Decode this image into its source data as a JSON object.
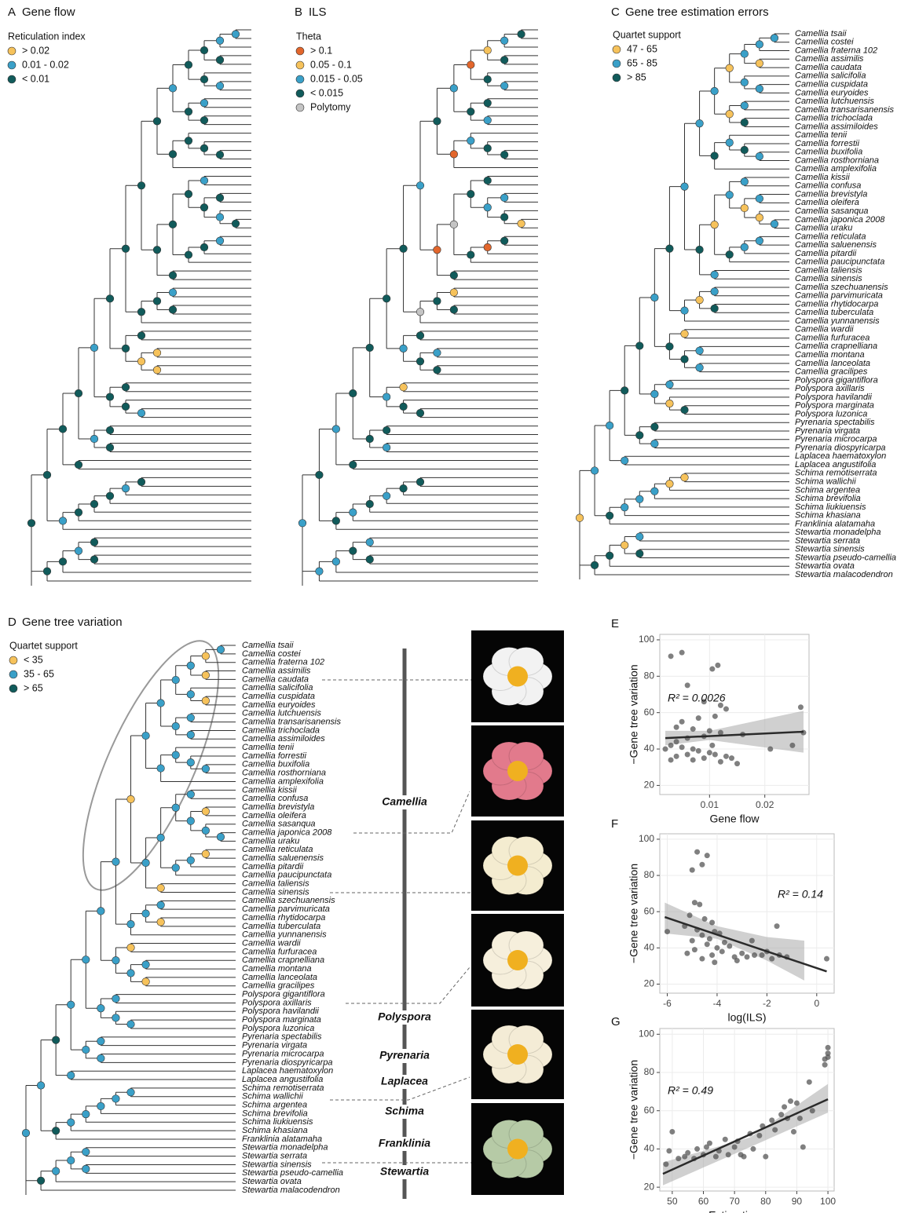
{
  "taxa": [
    "Camellia tsaii",
    "Camellia costei",
    "Camellia fraterna 102",
    "Camellia assimilis",
    "Camellia caudata",
    "Camellia salicifolia",
    "Camellia cuspidata",
    "Camellia euryoides",
    "Camellia lutchuensis",
    "Camellia transarisanensis",
    "Camellia trichoclada",
    "Camellia assimiloides",
    "Camellia tenii",
    "Camellia forrestii",
    "Camellia buxifolia",
    "Camellia rosthorniana",
    "Camellia amplexifolia",
    "Camellia kissii",
    "Camellia confusa",
    "Camellia brevistyla",
    "Camellia oleifera",
    "Camellia sasanqua",
    "Camellia japonica 2008",
    "Camellia uraku",
    "Camellia reticulata",
    "Camellia saluenensis",
    "Camellia pitardii",
    "Camellia paucipunctata",
    "Camellia taliensis",
    "Camellia sinensis",
    "Camellia szechuanensis",
    "Camellia parvimuricata",
    "Camellia rhytidocarpa",
    "Camellia tuberculata",
    "Camellia yunnanensis",
    "Camellia wardii",
    "Camellia furfuracea",
    "Camellia crapnelliana",
    "Camellia montana",
    "Camellia lanceolata",
    "Camellia gracilipes",
    "Polyspora gigantiflora",
    "Polyspora axillaris",
    "Polyspora havilandii",
    "Polyspora marginata",
    "Polyspora luzonica",
    "Pyrenaria spectabilis",
    "Pyrenaria virgata",
    "Pyrenaria microcarpa",
    "Pyrenaria diospyricarpa",
    "Laplacea haematoxylon",
    "Laplacea angustifolia",
    "Schima remotiserrata",
    "Schima wallichii",
    "Schima argentea",
    "Schima brevifolia",
    "Schima liukiuensis",
    "Schima khasiana",
    "Franklinia alatamaha",
    "Stewartia monadelpha",
    "Stewartia serrata",
    "Stewartia sinensis",
    "Stewartia pseudo-camellia",
    "Stewartia ovata",
    "Stewartia malacodendron"
  ],
  "tree": [
    [
      [
        [
          [
            [
              [
                [
                  [
                    [
                      [
                        [
                          [
                            [
                              0,
                              1
                            ],
                            2
                          ],
                          [
                            3,
                            4
                          ]
                        ],
                        [
                          5,
                          [
                            6,
                            7
                          ]
                        ]
                      ],
                      [
                        [
                          8,
                          9
                        ],
                        [
                          10,
                          11
                        ]
                      ]
                    ],
                    [
                      [
                        12,
                        [
                          13,
                          [
                            14,
                            15
                          ]
                        ]
                      ],
                      16
                    ]
                  ],
                  [
                    [
                      [
                        [
                          17,
                          18
                        ],
                        [
                          [
                            19,
                            20
                          ],
                          [
                            21,
                            [
                              22,
                              23
                            ]
                          ]
                        ]
                      ],
                      [
                        [
                          [
                            24,
                            25
                          ],
                          26
                        ],
                        27
                      ]
                    ],
                    [
                      28,
                      29
                    ]
                  ]
                ],
                [
                  [
                    [
                      30,
                      31
                    ],
                    [
                      32,
                      33
                    ]
                  ],
                  34
                ]
              ],
              [
                [
                  35,
                  36
                ],
                [
                  [
                    37,
                    38
                  ],
                  [
                    39,
                    40
                  ]
                ]
              ]
            ],
            [
              [
                41,
                42
              ],
              [
                43,
                [
                  44,
                  45
                ]
              ]
            ]
          ],
          [
            [
              46,
              47
            ],
            [
              48,
              49
            ]
          ]
        ],
        [
          50,
          51
        ]
      ],
      [
        [
          [
            [
              [
                [
                  52,
                  53
                ],
                54
              ],
              55
            ],
            56
          ],
          57
        ],
        58
      ]
    ],
    [
      [
        [
          [
            59,
            60
          ],
          [
            61,
            62
          ]
        ],
        63
      ],
      64
    ]
  ],
  "clades": [
    "Camellia",
    "Polyspora",
    "Pyrenaria",
    "Laplacea",
    "Schima",
    "Franklinia",
    "Stewartia"
  ],
  "chart_data": [
    {
      "type": "tree",
      "label": "A",
      "title": "Gene flow",
      "legend_title": "Reticulation index",
      "show_taxa": false,
      "legend": [
        {
          "label": "> 0.02",
          "color": "#f6c25b"
        },
        {
          "label": "0.01 - 0.02",
          "color": "#3aa0c8"
        },
        {
          "label": "< 0.01",
          "color": "#115b5b"
        }
      ],
      "node_classes": [
        1,
        1,
        2,
        2,
        1,
        2,
        2,
        1,
        2,
        2,
        1,
        2,
        2,
        2,
        2,
        2,
        1,
        2,
        2,
        1,
        2,
        2,
        1,
        2,
        2,
        2,
        2,
        2,
        2,
        1,
        2,
        2,
        2,
        2,
        2,
        0,
        0,
        0,
        2,
        2,
        2,
        1,
        2,
        2,
        1,
        2,
        2,
        1,
        2,
        2,
        2,
        2,
        1,
        2,
        2,
        2,
        1,
        2,
        2,
        2,
        1,
        2,
        2,
        2
      ]
    },
    {
      "type": "tree",
      "label": "B",
      "title": "ILS",
      "legend_title": "Theta",
      "show_taxa": false,
      "legend": [
        {
          "label": "> 0.1",
          "color": "#e2662c"
        },
        {
          "label": "0.05 - 0.1",
          "color": "#f6c25b"
        },
        {
          "label": "0.015 - 0.05",
          "color": "#3aa0c8"
        },
        {
          "label": "< 0.015",
          "color": "#115b5b"
        },
        {
          "label": "Polytomy",
          "color": "#c4c4c4"
        }
      ],
      "node_classes": [
        3,
        2,
        3,
        1,
        2,
        3,
        0,
        3,
        2,
        3,
        2,
        3,
        3,
        2,
        0,
        3,
        3,
        2,
        1,
        3,
        2,
        3,
        3,
        0,
        3,
        4,
        3,
        0,
        2,
        1,
        3,
        3,
        4,
        3,
        3,
        2,
        3,
        3,
        2,
        3,
        1,
        3,
        3,
        2,
        3,
        3,
        2,
        3,
        3,
        3,
        2,
        3,
        3,
        2,
        3,
        2,
        3,
        3,
        2,
        3,
        3,
        2,
        2,
        2
      ]
    },
    {
      "type": "tree",
      "label": "C",
      "title": "Gene tree estimation errors",
      "legend_title": "Quartet support",
      "show_taxa": true,
      "legend": [
        {
          "label": "47 - 65",
          "color": "#f6c25b"
        },
        {
          "label": "65 - 85",
          "color": "#3aa0c8"
        },
        {
          "label": "> 85",
          "color": "#115b5b"
        }
      ],
      "node_classes": [
        1,
        1,
        0,
        1,
        1,
        1,
        0,
        1,
        2,
        0,
        1,
        1,
        2,
        1,
        2,
        1,
        1,
        1,
        1,
        0,
        0,
        1,
        1,
        1,
        2,
        0,
        1,
        2,
        1,
        1,
        2,
        0,
        1,
        2,
        0,
        1,
        1,
        2,
        2,
        1,
        1,
        2,
        0,
        1,
        2,
        2,
        1,
        2,
        2,
        1,
        1,
        0,
        0,
        1,
        1,
        1,
        2,
        1,
        1,
        2,
        0,
        2,
        2,
        0
      ]
    },
    {
      "type": "tree",
      "label": "D",
      "title": "Gene tree variation",
      "legend_title": "Quartet support",
      "show_taxa": true,
      "legend": [
        {
          "label": "< 35",
          "color": "#f6c25b"
        },
        {
          "label": "35 - 65",
          "color": "#3aa0c8"
        },
        {
          "label": "> 65",
          "color": "#115b5b"
        }
      ],
      "node_classes": [
        1,
        0,
        0,
        1,
        0,
        1,
        1,
        1,
        1,
        1,
        1,
        1,
        1,
        1,
        1,
        1,
        1,
        0,
        1,
        1,
        1,
        1,
        0,
        1,
        1,
        1,
        0,
        1,
        0,
        1,
        0,
        1,
        1,
        1,
        0,
        1,
        0,
        1,
        1,
        1,
        1,
        1,
        1,
        1,
        1,
        1,
        1,
        1,
        1,
        1,
        2,
        1,
        1,
        1,
        1,
        1,
        2,
        1,
        1,
        1,
        1,
        1,
        2,
        1
      ]
    },
    {
      "type": "scatter",
      "label": "E",
      "x_label": "Gene flow",
      "y_label": "−Gene tree variation",
      "annotation": "R² = 0.0026",
      "color": "#555555",
      "xlim": [
        0.001,
        0.028
      ],
      "ylim": [
        15,
        103
      ],
      "xticks": [
        0.01,
        0.02
      ],
      "yticks": [
        20,
        40,
        60,
        80,
        100
      ],
      "x": [
        0.003,
        0.005,
        0.0115,
        0.0105,
        0.006,
        0.009,
        0.012,
        0.013,
        0.011,
        0.008,
        0.005,
        0.004,
        0.007,
        0.01,
        0.012,
        0.009,
        0.006,
        0.004,
        0.003,
        0.005,
        0.007,
        0.008,
        0.01,
        0.011,
        0.013,
        0.014,
        0.006,
        0.004,
        0.003,
        0.009,
        0.012,
        0.015,
        0.002,
        0.007,
        0.0105,
        0.016,
        0.0265,
        0.027,
        0.025,
        0.021
      ],
      "y": [
        91,
        93,
        86,
        84,
        75,
        66,
        64,
        62,
        58,
        57,
        55,
        52,
        51,
        50,
        49,
        47,
        46,
        44,
        42,
        41,
        40,
        39,
        38,
        37,
        36,
        35,
        37,
        36,
        34,
        35,
        33,
        32,
        40,
        34,
        42,
        48,
        63,
        49,
        42,
        40
      ],
      "fit": {
        "x": [
          0.002,
          0.027
        ],
        "y": [
          46,
          49.5
        ]
      },
      "band": {
        "x": [
          0.002,
          0.01,
          0.027
        ],
        "lower": [
          42,
          45,
          38
        ],
        "upper": [
          50,
          50,
          61
        ]
      }
    },
    {
      "type": "scatter",
      "label": "F",
      "x_label": "log(ILS)",
      "y_label": "−Gene tree variation",
      "annotation": "R² = 0.14",
      "color": "#555555",
      "xlim": [
        -6.3,
        0.7
      ],
      "ylim": [
        15,
        103
      ],
      "xticks": [
        -6,
        -4,
        -2,
        0
      ],
      "yticks": [
        20,
        40,
        60,
        80,
        100
      ],
      "x": [
        -4.8,
        -4.4,
        -4.6,
        -5,
        -4.9,
        -4.7,
        -5.1,
        -4.5,
        -4.2,
        -5.3,
        -4.8,
        -4.1,
        -3.9,
        -4.6,
        -4.3,
        -5.0,
        -3.7,
        -4.4,
        -3.5,
        -4.0,
        -4.9,
        -3.8,
        -5.2,
        -4.2,
        -3.3,
        -2.8,
        -4.6,
        -3.0,
        -2.5,
        -2.2,
        -1.8,
        -1.5,
        -1.2,
        -2.6,
        -2.0,
        -1.6,
        -6.0,
        0.4,
        -4.1,
        -3.2
      ],
      "y": [
        93,
        91,
        86,
        83,
        65,
        64,
        58,
        56,
        54,
        52,
        50,
        49,
        48,
        47,
        45,
        44,
        43,
        42,
        41,
        40,
        39,
        38,
        37,
        36,
        35,
        35,
        34,
        37,
        36,
        36,
        34,
        36,
        35,
        44,
        38,
        52,
        49,
        34,
        32,
        33
      ],
      "fit": {
        "x": [
          -6.1,
          0.4
        ],
        "y": [
          57,
          27
        ]
      },
      "band": {
        "x": [
          -6.1,
          -4,
          -2,
          -0.5
        ],
        "lower": [
          48,
          45,
          33,
          22
        ],
        "upper": [
          65,
          52,
          46,
          44
        ]
      }
    },
    {
      "type": "scatter",
      "label": "G",
      "x_label": "−Estimation errors",
      "y_label": "−Gene tree variation",
      "annotation": "R² = 0.49",
      "color": "#555555",
      "xlim": [
        46,
        102
      ],
      "ylim": [
        18,
        103
      ],
      "xticks": [
        50,
        60,
        70,
        80,
        90,
        100
      ],
      "yticks": [
        20,
        40,
        60,
        80,
        100
      ],
      "x": [
        48,
        49,
        50,
        52,
        54,
        55,
        57,
        58,
        60,
        61,
        62,
        64,
        65,
        67,
        68,
        70,
        71,
        72,
        73,
        75,
        76,
        78,
        79,
        80,
        82,
        83,
        85,
        86,
        87,
        88,
        89,
        90,
        91,
        92,
        94,
        95,
        99,
        99,
        100,
        100,
        100
      ],
      "y": [
        32,
        39,
        49,
        35,
        36,
        38,
        35,
        40,
        37,
        41,
        43,
        36,
        39,
        45,
        37,
        41,
        44,
        37,
        36,
        48,
        40,
        47,
        52,
        36,
        55,
        50,
        58,
        62,
        56,
        65,
        49,
        64,
        56,
        41,
        75,
        60,
        84,
        87,
        93,
        90,
        88
      ],
      "fit": {
        "x": [
          47,
          100
        ],
        "y": [
          27,
          66
        ]
      },
      "band": {
        "x": [
          47,
          75,
          100
        ],
        "lower": [
          21,
          41,
          59
        ],
        "upper": [
          33,
          46,
          74
        ]
      }
    }
  ]
}
